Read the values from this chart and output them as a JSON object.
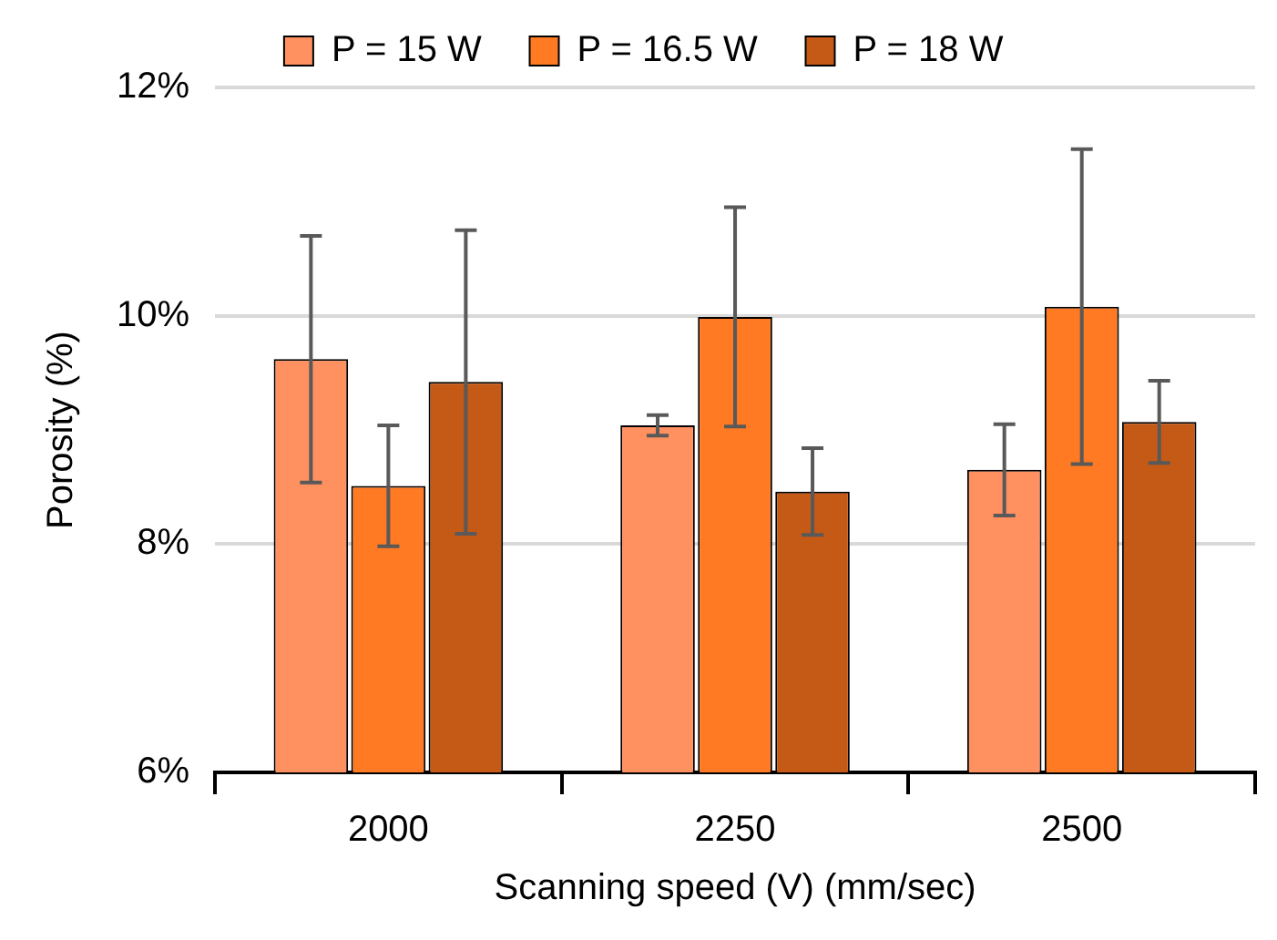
{
  "chart_data": {
    "type": "bar",
    "xlabel": "Scanning speed (V) (mm/sec)",
    "ylabel": "Porosity (%)",
    "categories": [
      "2000",
      "2250",
      "2500"
    ],
    "series": [
      {
        "name": "P = 15 W",
        "color": "#ff9060",
        "values": [
          9.62,
          9.04,
          8.65
        ],
        "errors": [
          1.08,
          0.09,
          0.4
        ]
      },
      {
        "name": "P = 16.5 W",
        "color": "#ff7a22",
        "values": [
          8.51,
          9.99,
          10.08
        ],
        "errors": [
          0.53,
          0.96,
          1.38
        ]
      },
      {
        "name": "P = 18 W",
        "color": "#c55a16",
        "values": [
          9.42,
          8.46,
          9.07
        ],
        "errors": [
          1.33,
          0.38,
          0.36
        ]
      }
    ],
    "ylim": [
      6,
      12
    ],
    "yticks": [
      {
        "value": 6,
        "label": "6%"
      },
      {
        "value": 8,
        "label": "8%"
      },
      {
        "value": 10,
        "label": "10%"
      },
      {
        "value": 12,
        "label": "12%"
      }
    ],
    "grid": "y",
    "legend": "top"
  }
}
